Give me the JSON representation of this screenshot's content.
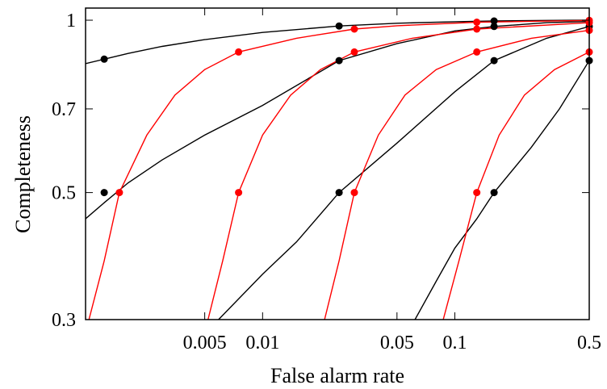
{
  "chart_data": {
    "type": "line",
    "title": "",
    "xlabel": "False alarm rate",
    "ylabel": "Completeness",
    "x_scale": "log",
    "y_scale": "log",
    "xlim": [
      0.0012,
      0.5
    ],
    "ylim": [
      0.3,
      1.05
    ],
    "x_ticks": [
      0.005,
      0.01,
      0.05,
      0.1,
      0.5
    ],
    "x_tick_labels": [
      "0.005",
      "0.01",
      "0.05",
      "0.1",
      "0.5"
    ],
    "y_ticks": [
      0.3,
      0.5,
      0.7,
      1
    ],
    "y_tick_labels": [
      "0.3",
      "0.5",
      "0.7",
      "1"
    ],
    "colors": {
      "black": "#000000",
      "red": "#ff0000"
    },
    "grid": false,
    "series": [
      {
        "color": "#000000",
        "points": [
          [
            0.0012,
            0.84
          ],
          [
            0.0015,
            0.855
          ],
          [
            0.002,
            0.875
          ],
          [
            0.003,
            0.9
          ],
          [
            0.005,
            0.925
          ],
          [
            0.01,
            0.952
          ],
          [
            0.025,
            0.977
          ],
          [
            0.05,
            0.988
          ],
          [
            0.1,
            0.994
          ],
          [
            0.16,
            0.997
          ],
          [
            0.3,
            0.999
          ],
          [
            0.5,
            1.0
          ]
        ],
        "markers": [
          [
            0.0015,
            0.855
          ],
          [
            0.025,
            0.977
          ],
          [
            0.16,
            0.997
          ]
        ]
      },
      {
        "color": "#000000",
        "points": [
          [
            0.0012,
            0.45
          ],
          [
            0.0015,
            0.48
          ],
          [
            0.002,
            0.52
          ],
          [
            0.003,
            0.57
          ],
          [
            0.005,
            0.63
          ],
          [
            0.01,
            0.71
          ],
          [
            0.025,
            0.85
          ],
          [
            0.05,
            0.91
          ],
          [
            0.1,
            0.958
          ],
          [
            0.16,
            0.975
          ],
          [
            0.3,
            0.99
          ],
          [
            0.5,
            0.995
          ]
        ],
        "markers": [
          [
            0.0015,
            0.5
          ],
          [
            0.025,
            0.85
          ],
          [
            0.16,
            0.975
          ]
        ]
      },
      {
        "color": "#000000",
        "points": [
          [
            0.0059,
            0.3
          ],
          [
            0.01,
            0.36
          ],
          [
            0.015,
            0.41
          ],
          [
            0.025,
            0.5
          ],
          [
            0.05,
            0.61
          ],
          [
            0.1,
            0.75
          ],
          [
            0.16,
            0.85
          ],
          [
            0.3,
            0.93
          ],
          [
            0.5,
            0.975
          ]
        ],
        "markers": [
          [
            0.025,
            0.5
          ],
          [
            0.16,
            0.85
          ],
          [
            0.5,
            0.975
          ]
        ]
      },
      {
        "color": "#000000",
        "points": [
          [
            0.062,
            0.3
          ],
          [
            0.08,
            0.35
          ],
          [
            0.1,
            0.4
          ],
          [
            0.13,
            0.45
          ],
          [
            0.16,
            0.5
          ],
          [
            0.25,
            0.6
          ],
          [
            0.35,
            0.7
          ],
          [
            0.5,
            0.85
          ]
        ],
        "markers": [
          [
            0.16,
            0.5
          ],
          [
            0.5,
            0.85
          ]
        ]
      },
      {
        "color": "#ff0000",
        "points": [
          [
            0.00125,
            0.3
          ],
          [
            0.0015,
            0.38
          ],
          [
            0.0018,
            0.5
          ],
          [
            0.0025,
            0.63
          ],
          [
            0.0035,
            0.74
          ],
          [
            0.005,
            0.82
          ],
          [
            0.0075,
            0.88
          ],
          [
            0.015,
            0.93
          ],
          [
            0.03,
            0.965
          ],
          [
            0.05,
            0.978
          ],
          [
            0.13,
            0.992
          ],
          [
            0.5,
            0.999
          ]
        ],
        "markers": [
          [
            0.0018,
            0.5
          ],
          [
            0.0075,
            0.88
          ],
          [
            0.03,
            0.965
          ],
          [
            0.13,
            0.992
          ],
          [
            0.5,
            0.999
          ]
        ]
      },
      {
        "color": "#ff0000",
        "points": [
          [
            0.0052,
            0.3
          ],
          [
            0.0062,
            0.38
          ],
          [
            0.0075,
            0.5
          ],
          [
            0.01,
            0.63
          ],
          [
            0.014,
            0.74
          ],
          [
            0.02,
            0.82
          ],
          [
            0.03,
            0.88
          ],
          [
            0.06,
            0.93
          ],
          [
            0.13,
            0.965
          ],
          [
            0.5,
            0.99
          ]
        ],
        "markers": [
          [
            0.0075,
            0.5
          ],
          [
            0.03,
            0.88
          ],
          [
            0.13,
            0.965
          ],
          [
            0.5,
            0.99
          ]
        ]
      },
      {
        "color": "#ff0000",
        "points": [
          [
            0.021,
            0.3
          ],
          [
            0.025,
            0.38
          ],
          [
            0.03,
            0.5
          ],
          [
            0.04,
            0.63
          ],
          [
            0.055,
            0.74
          ],
          [
            0.08,
            0.82
          ],
          [
            0.13,
            0.88
          ],
          [
            0.25,
            0.93
          ],
          [
            0.5,
            0.96
          ]
        ],
        "markers": [
          [
            0.03,
            0.5
          ],
          [
            0.13,
            0.88
          ],
          [
            0.5,
            0.96
          ]
        ]
      },
      {
        "color": "#ff0000",
        "points": [
          [
            0.087,
            0.3
          ],
          [
            0.105,
            0.38
          ],
          [
            0.13,
            0.5
          ],
          [
            0.17,
            0.63
          ],
          [
            0.23,
            0.74
          ],
          [
            0.33,
            0.82
          ],
          [
            0.5,
            0.88
          ]
        ],
        "markers": [
          [
            0.13,
            0.5
          ],
          [
            0.5,
            0.88
          ]
        ]
      }
    ]
  }
}
